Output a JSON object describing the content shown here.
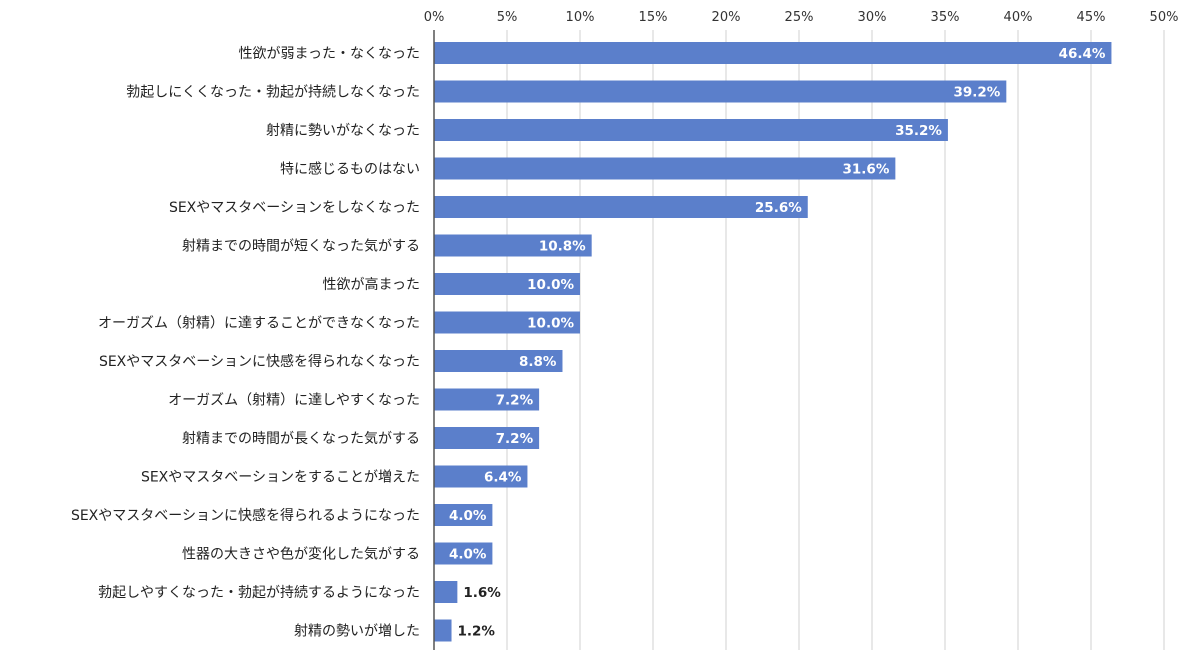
{
  "chart_data": {
    "type": "bar",
    "orientation": "horizontal",
    "xlim": [
      0,
      50
    ],
    "x_ticks": [
      "0%",
      "5%",
      "10%",
      "15%",
      "20%",
      "25%",
      "30%",
      "35%",
      "40%",
      "45%",
      "50%"
    ],
    "x_tick_values": [
      0,
      5,
      10,
      15,
      20,
      25,
      30,
      35,
      40,
      45,
      50
    ],
    "x_axis_position": "top",
    "grid": true,
    "bar_color": "#5b7fcb",
    "categories": [
      "性欲が弱まった・なくなった",
      "勃起しにくくなった・勃起が持続しなくなった",
      "射精に勢いがなくなった",
      "特に感じるものはない",
      "SEXやマスタベーションをしなくなった",
      "射精までの時間が短くなった気がする",
      "性欲が高まった",
      "オーガズム（射精）に達することができなくなった",
      "SEXやマスタベーションに快感を得られなくなった",
      "オーガズム（射精）に達しやすくなった",
      "射精までの時間が長くなった気がする",
      "SEXやマスタベーションをすることが増えた",
      "SEXやマスタベーションに快感を得られるようになった",
      "性器の大きさや色が変化した気がする",
      "勃起しやすくなった・勃起が持続するようになった",
      "射精の勢いが増した"
    ],
    "values": [
      46.4,
      39.2,
      35.2,
      31.6,
      25.6,
      10.8,
      10.0,
      10.0,
      8.8,
      7.2,
      7.2,
      6.4,
      4.0,
      4.0,
      1.6,
      1.2
    ],
    "data_labels": [
      "46.4%",
      "39.2%",
      "35.2%",
      "31.6%",
      "25.6%",
      "10.8%",
      "10.0%",
      "10.0%",
      "8.8%",
      "7.2%",
      "7.2%",
      "6.4%",
      "4.0%",
      "4.0%",
      "1.6%",
      "1.2%"
    ]
  }
}
